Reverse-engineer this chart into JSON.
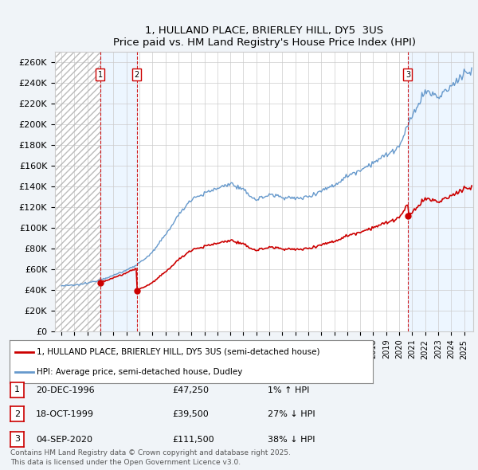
{
  "title": "1, HULLAND PLACE, BRIERLEY HILL, DY5  3US",
  "subtitle": "Price paid vs. HM Land Registry's House Price Index (HPI)",
  "ylabel_ticks": [
    "£0",
    "£20K",
    "£40K",
    "£60K",
    "£80K",
    "£100K",
    "£120K",
    "£140K",
    "£160K",
    "£180K",
    "£200K",
    "£220K",
    "£240K",
    "£260K"
  ],
  "ylim": [
    0,
    270000
  ],
  "yticks": [
    0,
    20000,
    40000,
    60000,
    80000,
    100000,
    120000,
    140000,
    160000,
    180000,
    200000,
    220000,
    240000,
    260000
  ],
  "xlim_start": 1993.5,
  "xlim_end": 2025.7,
  "transactions": [
    {
      "num": 1,
      "date": "20-DEC-1996",
      "year": 1996.97,
      "price": 47250,
      "label": "£47,250",
      "pct": "1% ↑ HPI"
    },
    {
      "num": 2,
      "date": "18-OCT-1999",
      "year": 1999.79,
      "price": 39500,
      "label": "£39,500",
      "pct": "27% ↓ HPI"
    },
    {
      "num": 3,
      "date": "04-SEP-2020",
      "year": 2020.67,
      "price": 111500,
      "label": "£111,500",
      "pct": "38% ↓ HPI"
    }
  ],
  "legend_line1": "1, HULLAND PLACE, BRIERLEY HILL, DY5 3US (semi-detached house)",
  "legend_line2": "HPI: Average price, semi-detached house, Dudley",
  "footer": "Contains HM Land Registry data © Crown copyright and database right 2025.\nThis data is licensed under the Open Government Licence v3.0.",
  "red_color": "#cc0000",
  "blue_color": "#6699cc",
  "blue_fill": "#ddeeff",
  "bg_color": "#f0f4f8",
  "plot_bg": "#ffffff",
  "grid_color": "#cccccc",
  "hatch_color": "#bbbbbb",
  "hpi_annual_years": [
    1994,
    1995,
    1996,
    1997,
    1998,
    1999,
    2000,
    2001,
    2002,
    2003,
    2004,
    2005,
    2006,
    2007,
    2008,
    2009,
    2010,
    2011,
    2012,
    2013,
    2014,
    2015,
    2016,
    2017,
    2018,
    2019,
    2020,
    2021,
    2022,
    2023,
    2024,
    2025
  ],
  "hpi_annual_values": [
    44000,
    44500,
    46500,
    50000,
    54000,
    59000,
    66000,
    76000,
    93000,
    112000,
    128000,
    133000,
    138000,
    143000,
    136000,
    127000,
    132000,
    130000,
    128000,
    130000,
    136000,
    141000,
    150000,
    156000,
    163000,
    170000,
    178000,
    208000,
    232000,
    226000,
    236000,
    250000
  ]
}
